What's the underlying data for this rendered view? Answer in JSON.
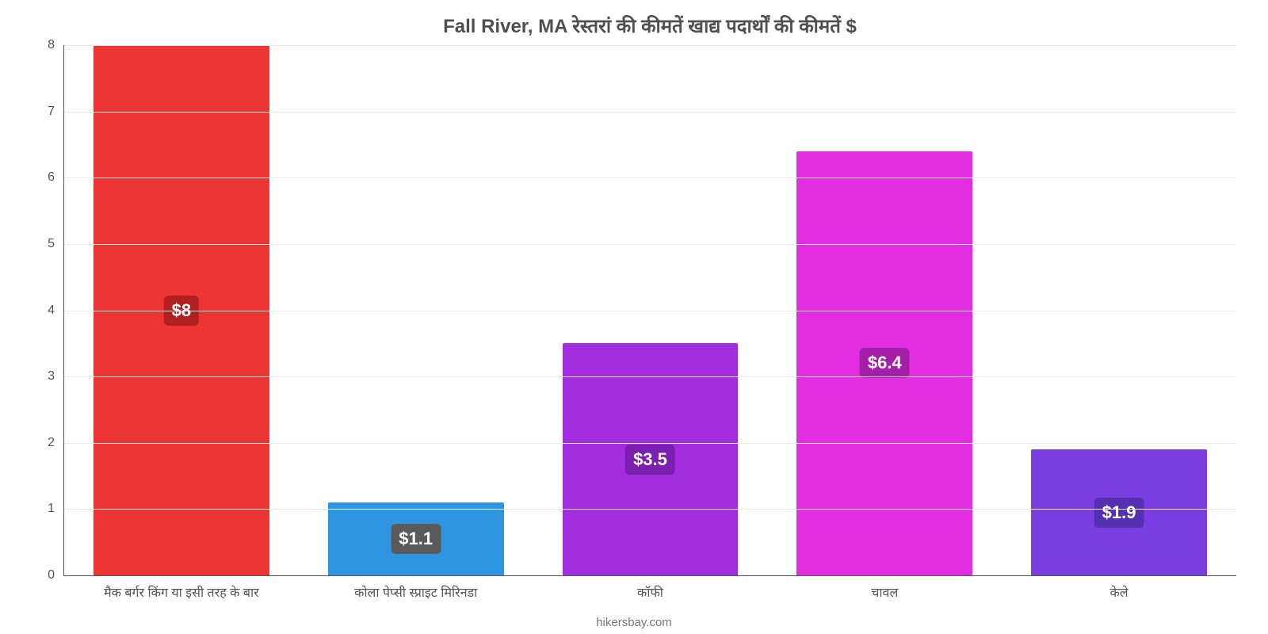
{
  "chart": {
    "type": "bar",
    "title": "Fall River, MA रेस्तरां की कीमतें खाद्य पदार्थों की कीमतें $",
    "title_fontsize": 24,
    "title_color": "#4f4f4f",
    "background_color": "#ffffff",
    "grid_color": "#ebebeb",
    "axis_color": "#555555",
    "label_fontsize": 16,
    "label_color": "#555555",
    "ylim": [
      0,
      8
    ],
    "ytick_step": 1,
    "yticks": [
      0,
      1,
      2,
      3,
      4,
      5,
      6,
      7,
      8
    ],
    "bar_width_pct": 75,
    "categories": [
      "मैक बर्गर किंग या इसी तरह के बार",
      "कोला पेप्सी स्प्राइट मिरिनडा",
      "कॉफी",
      "चावल",
      "केले"
    ],
    "values": [
      8,
      1.1,
      3.5,
      6.4,
      1.9
    ],
    "value_labels": [
      "$8",
      "$1.1",
      "$3.5",
      "$6.4",
      "$1.9"
    ],
    "bar_colors": [
      "#ee3535",
      "#2e96e0",
      "#a32ee0",
      "#e22ee0",
      "#7a3ee0"
    ],
    "badge_colors": [
      "#b02020",
      "#5a5a5a",
      "#7a1fb0",
      "#a31fa8",
      "#5530b2"
    ],
    "badge_fontsize": 22,
    "badge_text_color": "#ffffff",
    "badge_radius": 6,
    "source": "hikersbay.com"
  }
}
